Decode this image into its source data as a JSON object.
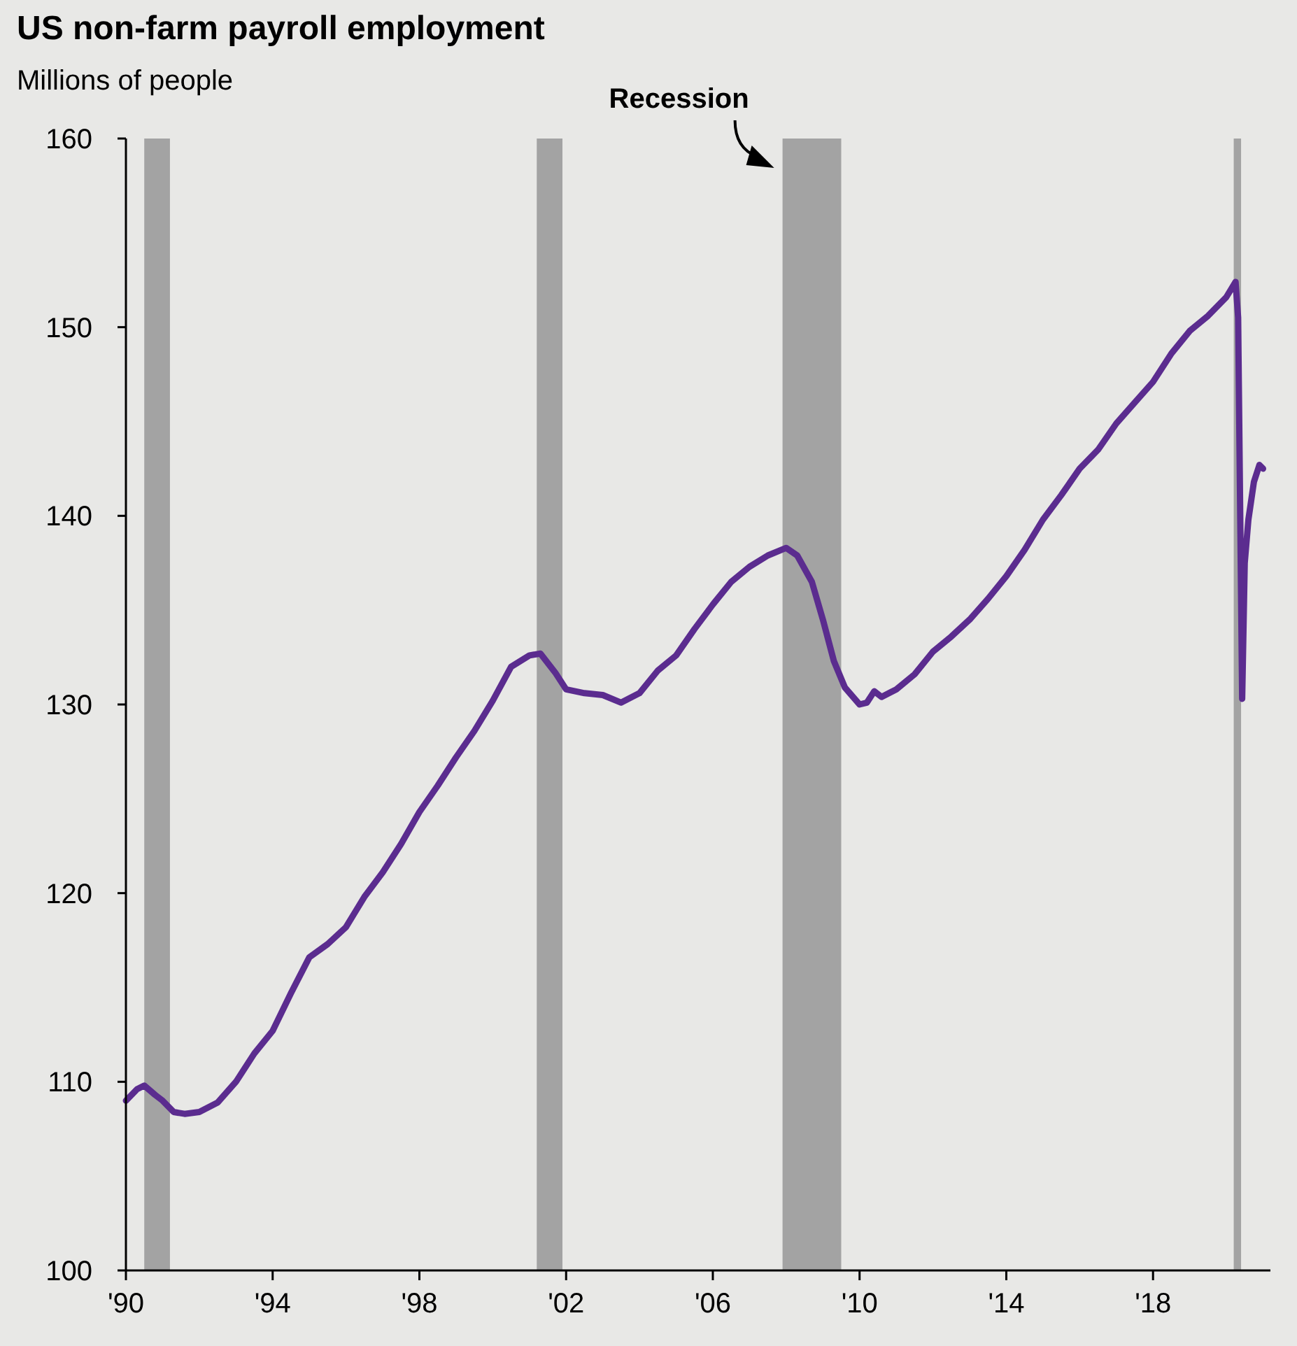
{
  "chart_data": {
    "type": "line",
    "title": "US non-farm payroll employment",
    "subtitle": "Millions of people",
    "series": [
      {
        "color": "#5b2c8f",
        "x": [
          1990.0,
          1990.3,
          1990.5,
          1990.8,
          1991.0,
          1991.3,
          1991.6,
          1992.0,
          1992.5,
          1993.0,
          1993.5,
          1994.0,
          1994.5,
          1995.0,
          1995.5,
          1996.0,
          1996.5,
          1997.0,
          1997.5,
          1998.0,
          1998.5,
          1999.0,
          1999.5,
          2000.0,
          2000.5,
          2001.0,
          2001.3,
          2001.7,
          2002.0,
          2002.5,
          2003.0,
          2003.5,
          2004.0,
          2004.5,
          2005.0,
          2005.5,
          2006.0,
          2006.5,
          2007.0,
          2007.5,
          2008.0,
          2008.3,
          2008.7,
          2009.0,
          2009.3,
          2009.6,
          2010.0,
          2010.2,
          2010.4,
          2010.6,
          2011.0,
          2011.5,
          2012.0,
          2012.5,
          2013.0,
          2013.5,
          2014.0,
          2014.5,
          2015.0,
          2015.5,
          2016.0,
          2016.5,
          2017.0,
          2017.5,
          2018.0,
          2018.5,
          2019.0,
          2019.5,
          2020.0,
          2020.25,
          2020.32,
          2020.43,
          2020.5,
          2020.6,
          2020.75,
          2020.9,
          2021.0
        ],
        "values": [
          109.0,
          109.6,
          109.8,
          109.3,
          109.0,
          108.4,
          108.3,
          108.4,
          108.9,
          110.0,
          111.5,
          112.7,
          114.7,
          116.6,
          117.3,
          118.2,
          119.8,
          121.1,
          122.6,
          124.3,
          125.7,
          127.2,
          128.6,
          130.2,
          132.0,
          132.6,
          132.7,
          131.7,
          130.8,
          130.6,
          130.5,
          130.1,
          130.6,
          131.8,
          132.6,
          134.0,
          135.3,
          136.5,
          137.3,
          137.9,
          138.3,
          137.9,
          136.5,
          134.5,
          132.3,
          130.9,
          130.0,
          130.1,
          130.7,
          130.4,
          130.8,
          131.6,
          132.8,
          133.6,
          134.5,
          135.6,
          136.8,
          138.2,
          139.8,
          141.1,
          142.5,
          143.5,
          144.9,
          146.0,
          147.1,
          148.6,
          149.8,
          150.6,
          151.6,
          152.4,
          150.5,
          130.3,
          137.5,
          139.8,
          141.8,
          142.7,
          142.5
        ]
      }
    ],
    "bands": [
      {
        "axis": "x",
        "from": 1990.5,
        "to": 1991.2,
        "color": "#a3a3a3"
      },
      {
        "axis": "x",
        "from": 2001.2,
        "to": 2001.9,
        "color": "#a3a3a3"
      },
      {
        "axis": "x",
        "from": 2007.9,
        "to": 2009.5,
        "label": "Recession",
        "color": "#a3a3a3"
      },
      {
        "axis": "x",
        "from": 2020.2,
        "to": 2020.4,
        "color": "#a3a3a3"
      }
    ],
    "xlim": [
      1990,
      2021.2
    ],
    "xticks": [
      {
        "value": 1990,
        "label": "'90"
      },
      {
        "value": 1994,
        "label": "'94"
      },
      {
        "value": 1998,
        "label": "'98"
      },
      {
        "value": 2002,
        "label": "'02"
      },
      {
        "value": 2006,
        "label": "'06"
      },
      {
        "value": 2010,
        "label": "'10"
      },
      {
        "value": 2014,
        "label": "'14"
      },
      {
        "value": 2018,
        "label": "'18"
      }
    ],
    "ylim": [
      100,
      160
    ],
    "yticks": [
      100,
      110,
      120,
      130,
      140,
      150,
      160
    ],
    "grid": false,
    "marker": "none",
    "line_style": "solid"
  }
}
